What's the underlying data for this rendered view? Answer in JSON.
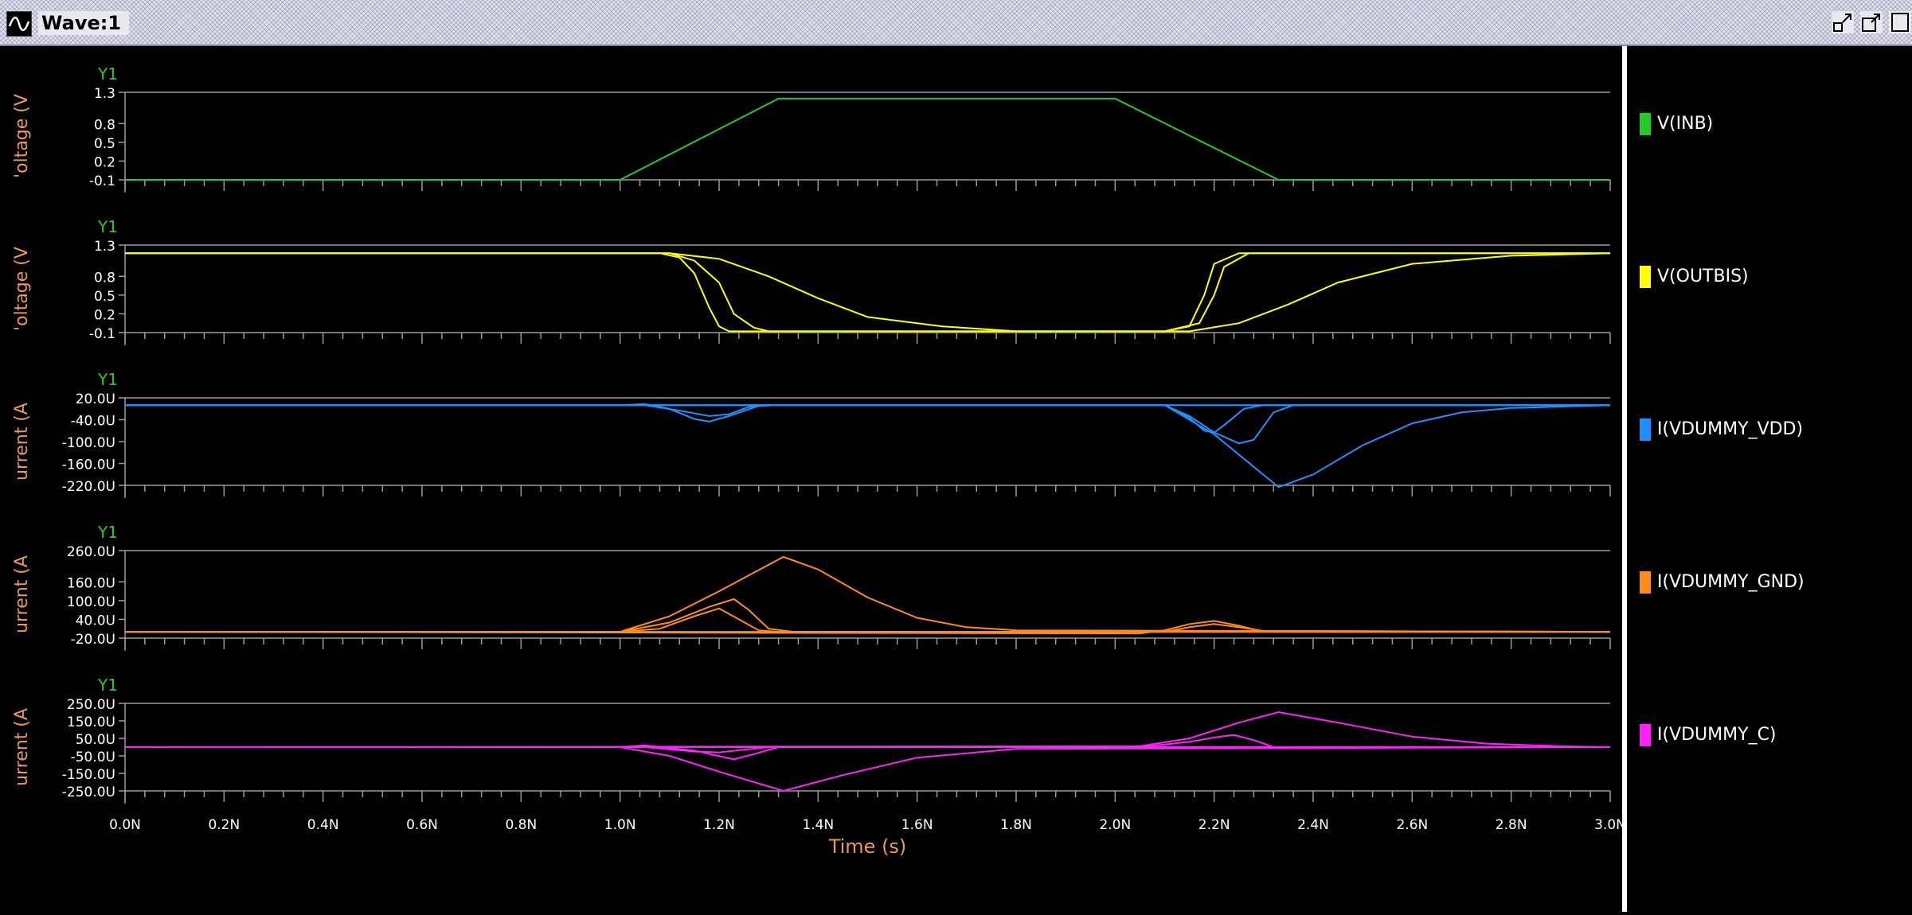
{
  "window": {
    "title": "Wave:1"
  },
  "legend": [
    {
      "label": "V(INB)",
      "color": "#22cc22"
    },
    {
      "label": "V(OUTBIS)",
      "color": "#ffff00"
    },
    {
      "label": "I(VDUMMY_VDD)",
      "color": "#1e90ff"
    },
    {
      "label": "I(VDUMMY_GND)",
      "color": "#ff8c1a"
    },
    {
      "label": "I(VDUMMY_C)",
      "color": "#ff22ff"
    }
  ],
  "x_axis": {
    "label": "Time (s)",
    "range": [
      0,
      3.0
    ],
    "unit": "ns",
    "tick_values": [
      0,
      0.2,
      0.4,
      0.6,
      0.8,
      1.0,
      1.2,
      1.4,
      1.6,
      1.8,
      2.0,
      2.2,
      2.4,
      2.6,
      2.8,
      3.0
    ],
    "tick_labels": [
      "0.0N",
      "0.2N",
      "0.4N",
      "0.6N",
      "0.8N",
      "1.0N",
      "1.2N",
      "1.4N",
      "1.6N",
      "1.8N",
      "2.0N",
      "2.2N",
      "2.4N",
      "2.6N",
      "2.8N",
      "3.0N"
    ]
  },
  "chart_data": [
    {
      "type": "line",
      "axis_name": "Y1",
      "ylabel": "'oltage (V",
      "ylim": [
        -0.1,
        1.3
      ],
      "tick_values": [
        -0.1,
        0.2,
        0.5,
        0.8,
        1.3
      ],
      "tick_labels": [
        "-0.1",
        "0.2",
        "0.5",
        "0.8",
        "1.3"
      ],
      "series": [
        {
          "color": "#22cc22",
          "x": [
            0,
            1.0,
            1.32,
            2.0,
            2.33,
            3.0
          ],
          "y": [
            -0.1,
            -0.1,
            1.2,
            1.2,
            -0.1,
            -0.1
          ]
        }
      ]
    },
    {
      "type": "line",
      "axis_name": "Y1",
      "ylabel": "'oltage (V",
      "ylim": [
        -0.1,
        1.3
      ],
      "tick_values": [
        -0.1,
        0.2,
        0.5,
        0.8,
        1.3
      ],
      "tick_labels": [
        "-0.1",
        "0.2",
        "0.5",
        "0.8",
        "1.3"
      ],
      "series": [
        {
          "color": "#ffff00",
          "x": [
            0,
            1.08,
            1.12,
            1.15,
            1.18,
            1.2,
            1.22,
            2.1,
            2.15,
            2.18,
            2.2,
            2.25,
            3.0
          ],
          "y": [
            1.17,
            1.17,
            1.1,
            0.85,
            0.3,
            0.0,
            -0.08,
            -0.08,
            0.0,
            0.5,
            1.0,
            1.17,
            1.17
          ]
        },
        {
          "color": "#ffff00",
          "x": [
            0,
            1.1,
            1.15,
            1.2,
            1.23,
            1.27,
            1.3,
            2.1,
            2.17,
            2.2,
            2.22,
            2.27,
            3.0
          ],
          "y": [
            1.17,
            1.17,
            1.05,
            0.7,
            0.2,
            -0.02,
            -0.08,
            -0.08,
            0.05,
            0.5,
            0.95,
            1.17,
            1.17
          ]
        },
        {
          "color": "#ffff00",
          "x": [
            0,
            1.1,
            1.2,
            1.3,
            1.4,
            1.5,
            1.65,
            1.8,
            2.15,
            2.25,
            2.35,
            2.45,
            2.6,
            2.8,
            3.0
          ],
          "y": [
            1.17,
            1.17,
            1.08,
            0.8,
            0.45,
            0.15,
            0.0,
            -0.08,
            -0.08,
            0.05,
            0.35,
            0.7,
            1.0,
            1.13,
            1.17
          ]
        }
      ]
    },
    {
      "type": "line",
      "axis_name": "Y1",
      "ylabel": "urrent (A",
      "ylim": [
        -220,
        20
      ],
      "tick_values": [
        -220,
        -160,
        -100,
        -40,
        20
      ],
      "tick_labels": [
        "-220.0U",
        "-160.0U",
        "-100.0U",
        "-40.0U",
        "20.0U"
      ],
      "series": [
        {
          "color": "#1e90ff",
          "x": [
            0,
            1.0,
            1.05,
            1.1,
            1.15,
            1.18,
            1.22,
            1.28,
            1.32,
            3.0
          ],
          "y": [
            0,
            0,
            3,
            -10,
            -38,
            -45,
            -30,
            -2,
            0,
            0
          ]
        },
        {
          "color": "#1e90ff",
          "x": [
            0,
            1.05,
            1.12,
            1.18,
            1.22,
            1.26,
            1.3,
            3.0
          ],
          "y": [
            0,
            0,
            -15,
            -30,
            -25,
            -5,
            0,
            0
          ]
        },
        {
          "color": "#1e90ff",
          "x": [
            0,
            2.1,
            2.15,
            2.18,
            2.2,
            2.22,
            2.26,
            2.3,
            3.0
          ],
          "y": [
            0,
            0,
            -35,
            -70,
            -75,
            -55,
            -10,
            0,
            0
          ]
        },
        {
          "color": "#1e90ff",
          "x": [
            0,
            2.1,
            2.15,
            2.2,
            2.25,
            2.28,
            2.32,
            2.36,
            3.0
          ],
          "y": [
            0,
            0,
            -30,
            -75,
            -105,
            -95,
            -20,
            0,
            0
          ]
        },
        {
          "color": "#1e90ff",
          "x": [
            0,
            2.1,
            2.2,
            2.33,
            2.4,
            2.5,
            2.6,
            2.7,
            2.8,
            3.0
          ],
          "y": [
            0,
            0,
            -80,
            -225,
            -190,
            -110,
            -50,
            -20,
            -8,
            0
          ]
        }
      ]
    },
    {
      "type": "line",
      "axis_name": "Y1",
      "ylabel": "urrent (A",
      "ylim": [
        -20,
        260
      ],
      "tick_values": [
        -20,
        40,
        100,
        160,
        260
      ],
      "tick_labels": [
        "-20.0U",
        "40.0U",
        "100.0U",
        "160.0U",
        "260.0U"
      ],
      "series": [
        {
          "color": "#ff8c1a",
          "x": [
            0,
            1.0,
            1.08,
            1.15,
            1.2,
            1.24,
            1.28,
            1.32,
            3.0
          ],
          "y": [
            0,
            0,
            10,
            50,
            75,
            40,
            5,
            0,
            0
          ]
        },
        {
          "color": "#ff8c1a",
          "x": [
            0,
            1.0,
            1.1,
            1.18,
            1.23,
            1.26,
            1.3,
            1.35,
            3.0
          ],
          "y": [
            0,
            0,
            30,
            80,
            105,
            70,
            10,
            0,
            0
          ]
        },
        {
          "color": "#ff8c1a",
          "x": [
            0,
            1.0,
            1.1,
            1.2,
            1.33,
            1.4,
            1.5,
            1.6,
            1.7,
            1.8,
            3.0
          ],
          "y": [
            0,
            0,
            50,
            130,
            240,
            200,
            110,
            45,
            15,
            5,
            0
          ]
        },
        {
          "color": "#ff8c1a",
          "x": [
            0,
            2.05,
            2.1,
            2.15,
            2.2,
            2.25,
            2.3,
            3.0
          ],
          "y": [
            0,
            -5,
            5,
            25,
            35,
            20,
            0,
            0
          ]
        },
        {
          "color": "#ff8c1a",
          "x": [
            0,
            2.1,
            2.15,
            2.2,
            2.25,
            2.3,
            3.0
          ],
          "y": [
            0,
            0,
            15,
            25,
            15,
            3,
            0
          ]
        }
      ]
    },
    {
      "type": "line",
      "axis_name": "Y1",
      "ylabel": "urrent (A",
      "ylim": [
        -250,
        250
      ],
      "tick_values": [
        -250,
        -150,
        -50,
        50,
        150,
        250
      ],
      "tick_labels": [
        "-250.0U",
        "-150.0U",
        "-50.0U",
        "50.0U",
        "150.0U",
        "250.0U"
      ],
      "series": [
        {
          "color": "#ff22ff",
          "x": [
            0,
            1.0,
            1.05,
            1.15,
            1.23,
            1.27,
            1.32,
            3.0
          ],
          "y": [
            0,
            0,
            10,
            -20,
            -70,
            -40,
            0,
            0
          ]
        },
        {
          "color": "#ff22ff",
          "x": [
            0,
            1.05,
            1.15,
            1.2,
            1.25,
            1.3,
            3.0
          ],
          "y": [
            0,
            0,
            -25,
            -30,
            -15,
            0,
            0
          ]
        },
        {
          "color": "#ff22ff",
          "x": [
            0,
            1.0,
            1.1,
            1.2,
            1.33,
            1.45,
            1.6,
            1.8,
            3.0
          ],
          "y": [
            0,
            0,
            -50,
            -140,
            -250,
            -160,
            -60,
            -10,
            0
          ]
        },
        {
          "color": "#ff22ff",
          "x": [
            0,
            2.05,
            2.15,
            2.2,
            2.24,
            2.28,
            2.32,
            3.0
          ],
          "y": [
            0,
            0,
            30,
            55,
            70,
            40,
            0,
            0
          ]
        },
        {
          "color": "#ff22ff",
          "x": [
            0,
            2.05,
            2.15,
            2.25,
            2.33,
            2.45,
            2.6,
            2.75,
            2.9,
            3.0
          ],
          "y": [
            0,
            5,
            50,
            140,
            200,
            140,
            60,
            20,
            5,
            0
          ]
        }
      ]
    }
  ]
}
